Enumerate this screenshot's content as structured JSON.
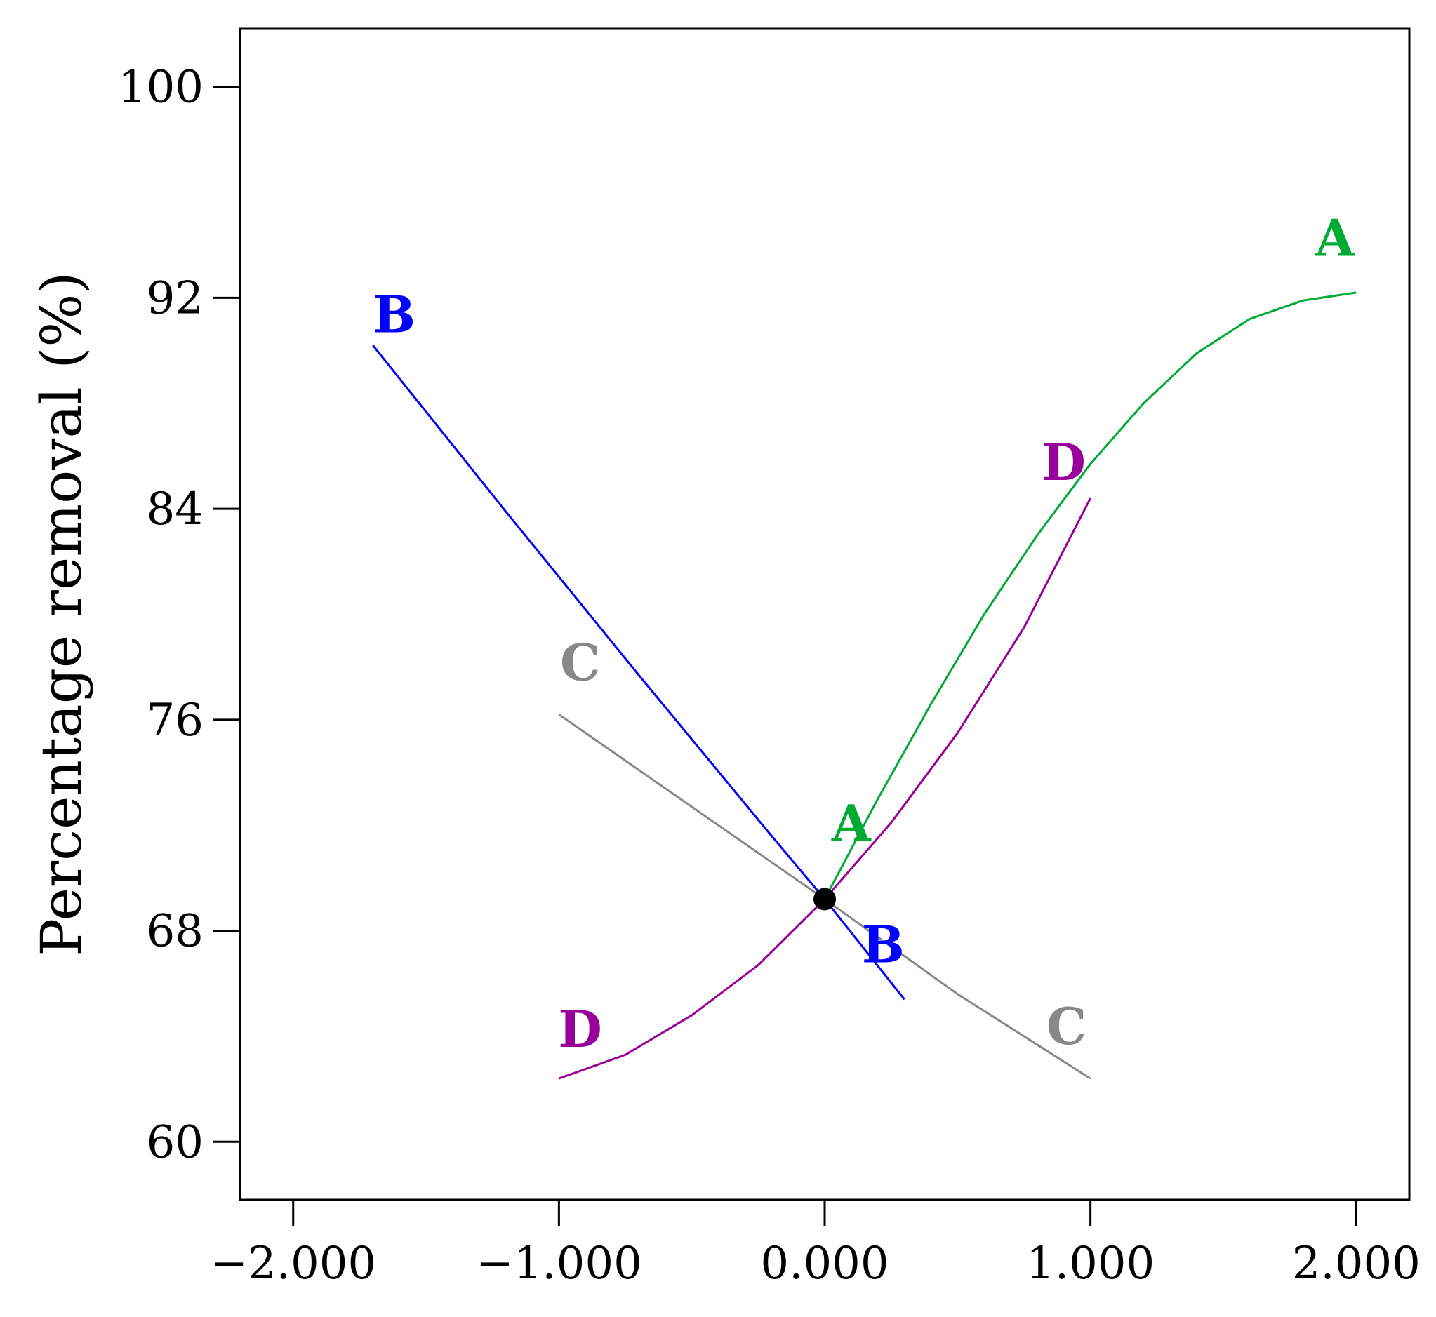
{
  "chart_data": {
    "type": "line",
    "title": "",
    "xlabel": "",
    "ylabel": "Percentage removal (%)",
    "xlim": [
      -2.2,
      2.2
    ],
    "ylim": [
      57.8,
      102.2
    ],
    "grid": false,
    "x_ticks": [
      {
        "value": -2,
        "label": "−2.000"
      },
      {
        "value": -1,
        "label": "−1.000"
      },
      {
        "value": 0,
        "label": "0.000"
      },
      {
        "value": 1,
        "label": "1.000"
      },
      {
        "value": 2,
        "label": "2.000"
      }
    ],
    "y_ticks": [
      {
        "value": 60,
        "label": "60"
      },
      {
        "value": 68,
        "label": "68"
      },
      {
        "value": 76,
        "label": "76"
      },
      {
        "value": 84,
        "label": "84"
      },
      {
        "value": 92,
        "label": "92"
      },
      {
        "value": 100,
        "label": "100"
      }
    ],
    "center_point": {
      "x": 0,
      "y": 69.2
    },
    "series": [
      {
        "name": "A",
        "color": "#00aa33",
        "labels": [
          {
            "x": 0.1,
            "y": 71.4,
            "text": "A"
          },
          {
            "x": 1.92,
            "y": 93.6,
            "text": "A"
          }
        ],
        "points": [
          [
            0.0,
            69.2
          ],
          [
            0.2,
            73.0
          ],
          [
            0.4,
            76.6
          ],
          [
            0.6,
            80.0
          ],
          [
            0.8,
            83.0
          ],
          [
            1.0,
            85.7
          ],
          [
            1.2,
            88.0
          ],
          [
            1.4,
            89.9
          ],
          [
            1.6,
            91.2
          ],
          [
            1.8,
            91.9
          ],
          [
            2.0,
            92.2
          ]
        ]
      },
      {
        "name": "B",
        "color": "#0000ff",
        "labels": [
          {
            "x": -1.62,
            "y": 90.7,
            "text": "B"
          },
          {
            "x": 0.22,
            "y": 66.8,
            "text": "B"
          }
        ],
        "points": [
          [
            -1.7,
            90.2
          ],
          [
            -1.2,
            83.9
          ],
          [
            -0.7,
            77.7
          ],
          [
            -0.2,
            71.6
          ],
          [
            0.0,
            69.2
          ],
          [
            0.3,
            65.4
          ]
        ]
      },
      {
        "name": "C",
        "color": "#888888",
        "labels": [
          {
            "x": -0.92,
            "y": 77.5,
            "text": "C"
          },
          {
            "x": 0.91,
            "y": 63.7,
            "text": "C"
          }
        ],
        "points": [
          [
            -1.0,
            76.2
          ],
          [
            -0.5,
            72.7
          ],
          [
            0.0,
            69.2
          ],
          [
            0.5,
            65.6
          ],
          [
            1.0,
            62.4
          ]
        ]
      },
      {
        "name": "D",
        "color": "#990099",
        "labels": [
          {
            "x": -0.92,
            "y": 63.6,
            "text": "D"
          },
          {
            "x": 0.9,
            "y": 85.1,
            "text": "D"
          }
        ],
        "points": [
          [
            -1.0,
            62.4
          ],
          [
            -0.75,
            63.3
          ],
          [
            -0.5,
            64.8
          ],
          [
            -0.25,
            66.7
          ],
          [
            0.0,
            69.2
          ],
          [
            0.25,
            72.1
          ],
          [
            0.5,
            75.5
          ],
          [
            0.75,
            79.5
          ],
          [
            1.0,
            84.4
          ]
        ]
      }
    ]
  }
}
